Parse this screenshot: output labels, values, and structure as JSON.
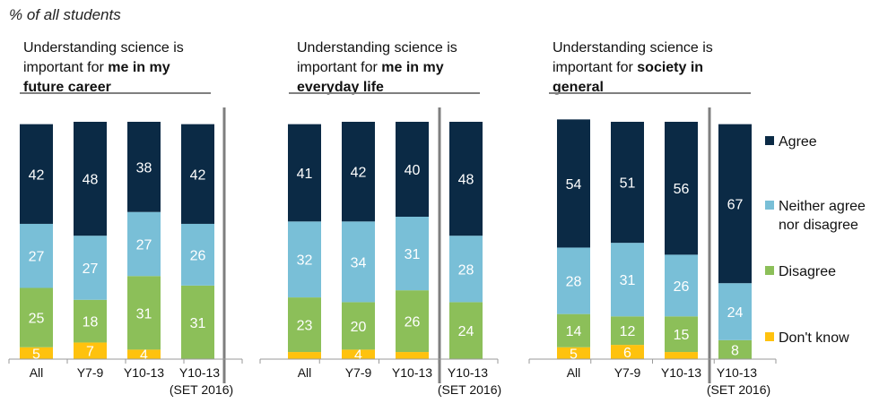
{
  "caption": "% of all students",
  "legend": {
    "agree": "Agree",
    "neither_line1": "Neither agree",
    "neither_line2": "nor disagree",
    "disagree": "Disagree",
    "dont_know": "Don't know"
  },
  "colors": {
    "Agree": "#0b2a45",
    "Neither agree nor disagree": "#79bfd7",
    "Disagree": "#8cbf59",
    "Don't know": "#ffc20e"
  },
  "chart_data": [
    {
      "type": "bar",
      "stacked": true,
      "title_lines": [
        "Understanding science is",
        "important for me in my",
        "future career"
      ],
      "title_bold_from": "me in my",
      "categories": [
        "All",
        "Y7-9",
        "Y10-13",
        "Y10-13\n(SET 2016)"
      ],
      "category_line1": [
        "All",
        "Y7-9",
        "Y10-13",
        "Y10-13"
      ],
      "category_line2": [
        "",
        "",
        "",
        "(SET 2016)"
      ],
      "series": [
        {
          "name": "Don't know",
          "values": [
            5,
            7,
            4,
            0
          ],
          "labels": [
            "5",
            "7",
            "4",
            ""
          ]
        },
        {
          "name": "Disagree",
          "values": [
            25,
            18,
            31,
            31
          ],
          "labels": [
            "25",
            "18",
            "31",
            "31"
          ]
        },
        {
          "name": "Neither agree nor disagree",
          "values": [
            27,
            27,
            27,
            26
          ],
          "labels": [
            "27",
            "27",
            "27",
            "26"
          ]
        },
        {
          "name": "Agree",
          "values": [
            42,
            48,
            38,
            42
          ],
          "labels": [
            "42",
            "48",
            "38",
            "42"
          ]
        }
      ]
    },
    {
      "type": "bar",
      "stacked": true,
      "title_lines": [
        "Understanding science is",
        "important for me in my",
        "everyday life"
      ],
      "title_bold_from": "me in my",
      "categories": [
        "All",
        "Y7-9",
        "Y10-13",
        "Y10-13\n(SET 2016)"
      ],
      "category_line1": [
        "All",
        "Y7-9",
        "Y10-13",
        "Y10-13"
      ],
      "category_line2": [
        "",
        "",
        "",
        "(SET 2016)"
      ],
      "series": [
        {
          "name": "Don't know",
          "values": [
            3,
            4,
            3,
            0
          ],
          "labels": [
            "",
            "4",
            "",
            ""
          ]
        },
        {
          "name": "Disagree",
          "values": [
            23,
            20,
            26,
            24
          ],
          "labels": [
            "23",
            "20",
            "26",
            "24"
          ]
        },
        {
          "name": "Neither agree nor disagree",
          "values": [
            32,
            34,
            31,
            28
          ],
          "labels": [
            "32",
            "34",
            "31",
            "28"
          ]
        },
        {
          "name": "Agree",
          "values": [
            41,
            42,
            40,
            48
          ],
          "labels": [
            "41",
            "42",
            "40",
            "48"
          ]
        }
      ]
    },
    {
      "type": "bar",
      "stacked": true,
      "title_lines": [
        "Understanding science is",
        "important for society in",
        "general"
      ],
      "title_bold_from": "society in",
      "categories": [
        "All",
        "Y7-9",
        "Y10-13",
        "Y10-13\n(SET 2016)"
      ],
      "category_line1": [
        "All",
        "Y7-9",
        "Y10-13",
        "Y10-13"
      ],
      "category_line2": [
        "",
        "",
        "",
        "(SET 2016)"
      ],
      "series": [
        {
          "name": "Don't know",
          "values": [
            5,
            6,
            3,
            0
          ],
          "labels": [
            "5",
            "6",
            "",
            ""
          ]
        },
        {
          "name": "Disagree",
          "values": [
            14,
            12,
            15,
            8
          ],
          "labels": [
            "14",
            "12",
            "15",
            "8"
          ]
        },
        {
          "name": "Neither agree nor disagree",
          "values": [
            28,
            31,
            26,
            24
          ],
          "labels": [
            "28",
            "31",
            "26",
            "24"
          ]
        },
        {
          "name": "Agree",
          "values": [
            54,
            51,
            56,
            67
          ],
          "labels": [
            "54",
            "51",
            "56",
            "67"
          ]
        }
      ]
    }
  ]
}
